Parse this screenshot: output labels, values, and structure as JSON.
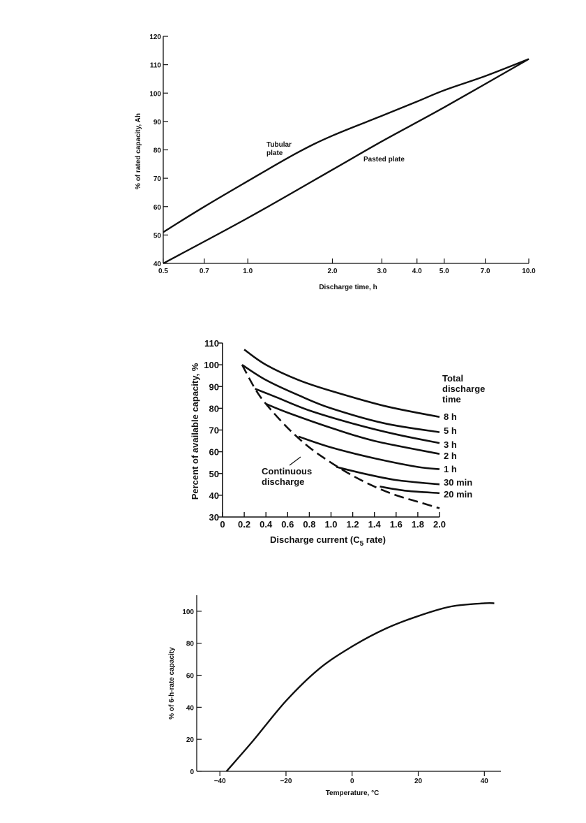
{
  "chart_data": [
    {
      "type": "line",
      "title": "",
      "xlabel": "Discharge time, h",
      "ylabel": "% of rated capacity, Ah",
      "x_scale": "log",
      "xlim": [
        0.5,
        10.0
      ],
      "ylim": [
        40,
        120
      ],
      "x_ticks": [
        "0.5",
        "0.7",
        "1.0",
        "2.0",
        "3.0",
        "4.0",
        "5.0",
        "7.0",
        "10.0"
      ],
      "y_ticks": [
        "40",
        "50",
        "60",
        "70",
        "80",
        "90",
        "100",
        "110",
        "120"
      ],
      "series": [
        {
          "name": "Tubular plate",
          "label_lines": [
            "Tubular",
            "plate"
          ],
          "x": [
            0.5,
            0.7,
            1.0,
            1.5,
            2.0,
            3.0,
            4.0,
            5.0,
            7.0,
            10.0
          ],
          "values": [
            51,
            60,
            69,
            79,
            85,
            92,
            97,
            101,
            106,
            112
          ]
        },
        {
          "name": "Pasted plate",
          "label_lines": [
            "Pasted plate"
          ],
          "x": [
            0.5,
            1.0,
            2.0,
            3.0,
            5.0,
            10.0
          ],
          "values": [
            40,
            56,
            73,
            83,
            95,
            112
          ]
        }
      ]
    },
    {
      "type": "line",
      "title": "",
      "xlabel": "Discharge current  (C",
      "xlabel_sub": "5",
      "xlabel_end": " rate)",
      "ylabel": "Percent of available capacity, %",
      "xlim": [
        0,
        2.0
      ],
      "ylim": [
        30,
        110
      ],
      "x_ticks": [
        "0",
        "0.2",
        "0.4",
        "0.6",
        "0.8",
        "1.0",
        "1.2",
        "1.4",
        "1.6",
        "1.8",
        "2.0"
      ],
      "y_ticks": [
        "30",
        "40",
        "50",
        "60",
        "70",
        "80",
        "90",
        "100",
        "110"
      ],
      "legend_title": [
        "Total",
        "discharge",
        "time"
      ],
      "series": [
        {
          "name": "8 h",
          "x": [
            0.2,
            0.4,
            0.7,
            1.0,
            1.5,
            2.0
          ],
          "values": [
            107,
            100,
            93,
            88,
            81,
            76
          ]
        },
        {
          "name": "5 h",
          "x": [
            0.18,
            0.4,
            0.7,
            1.0,
            1.5,
            2.0
          ],
          "values": [
            100,
            93,
            86,
            80,
            73,
            69
          ]
        },
        {
          "name": "3 h",
          "x": [
            0.3,
            0.5,
            0.8,
            1.2,
            1.6,
            2.0
          ],
          "values": [
            89,
            85,
            79,
            73,
            68,
            64
          ]
        },
        {
          "name": "2 h",
          "x": [
            0.4,
            0.6,
            1.0,
            1.4,
            2.0
          ],
          "values": [
            82,
            78,
            71,
            65,
            59
          ]
        },
        {
          "name": "1 h",
          "x": [
            0.7,
            1.0,
            1.4,
            1.8,
            2.0
          ],
          "values": [
            67,
            62,
            57,
            53,
            52
          ]
        },
        {
          "name": "30 min",
          "x": [
            1.05,
            1.3,
            1.6,
            2.0
          ],
          "values": [
            53,
            50,
            47,
            45
          ]
        },
        {
          "name": "20 min",
          "x": [
            1.45,
            1.7,
            2.0
          ],
          "values": [
            44,
            42,
            41
          ]
        },
        {
          "name": "Continuous discharge",
          "dashed": true,
          "label_lines": [
            "Continuous",
            "discharge"
          ],
          "x": [
            0.18,
            0.3,
            0.4,
            0.6,
            0.8,
            1.0,
            1.2,
            1.4,
            1.6,
            1.8,
            2.0
          ],
          "values": [
            100,
            89,
            82,
            71,
            62,
            55,
            49,
            44,
            40,
            37,
            34
          ]
        }
      ]
    },
    {
      "type": "line",
      "title": "",
      "xlabel": "Temperature, °C",
      "ylabel": "% of 6-h-rate capacity",
      "xlim": [
        -47,
        45
      ],
      "ylim": [
        0,
        110
      ],
      "x_ticks": [
        "-40",
        "-20",
        "0",
        "20",
        "40"
      ],
      "y_ticks": [
        "0",
        "20",
        "40",
        "60",
        "80",
        "100"
      ],
      "series": [
        {
          "name": "",
          "x": [
            -38,
            -30,
            -20,
            -10,
            0,
            10,
            20,
            30,
            40,
            43
          ],
          "values": [
            0,
            19,
            44,
            64,
            78,
            89,
            97,
            103,
            105,
            105
          ]
        }
      ]
    }
  ]
}
